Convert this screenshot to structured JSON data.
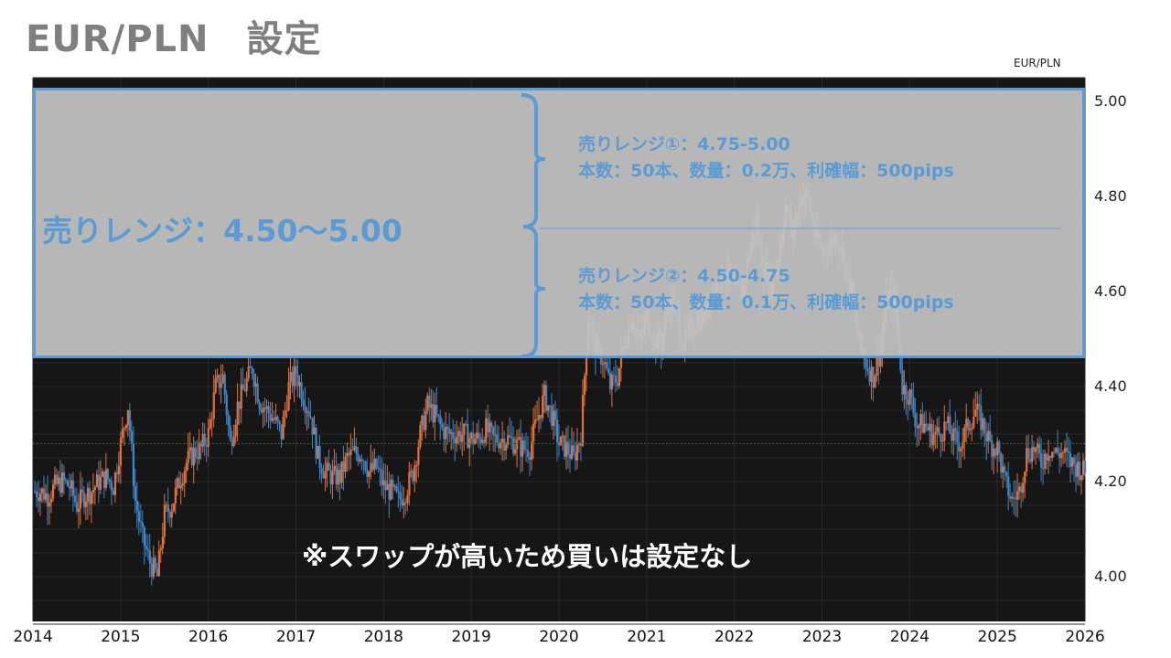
{
  "title": "EUR/PLN　設定",
  "pair_label": "EUR/PLN",
  "annotations": {
    "main_range": "売りレンジ：4.50～5.00",
    "range1_line1": "売りレンジ①：4.75-5.00",
    "range1_line2": "本数：50本、数量：0.2万、利確幅：500pips",
    "range2_line1": "売りレンジ②：4.50-4.75",
    "range2_line2": "本数：50本、数量：0.1万、利確幅：500pips",
    "note": "※スワップが高いため買いは設定なし"
  },
  "colors": {
    "up": "#e0703c",
    "down": "#3f86c8",
    "accent": "#5b9bd5",
    "background": "#161616"
  },
  "chart_data": {
    "type": "candlestick",
    "title": "EUR/PLN",
    "xlabel": "",
    "ylabel": "",
    "xlim": [
      2014,
      2026
    ],
    "ylim": [
      3.9,
      5.05
    ],
    "x_ticks": [
      "2014",
      "2015",
      "2016",
      "2017",
      "2018",
      "2019",
      "2020",
      "2021",
      "2022",
      "2023",
      "2024",
      "2025",
      "2026"
    ],
    "y_ticks": [
      "5.00",
      "4.80",
      "4.60",
      "4.40",
      "4.20",
      "4.00"
    ],
    "shaded_range": [
      4.5,
      5.0
    ],
    "range_split": 4.75,
    "reference_line": 4.28,
    "monthly_close_start": 2014,
    "monthly_close": [
      4.18,
      4.17,
      4.19,
      4.2,
      4.19,
      4.15,
      4.17,
      4.18,
      4.2,
      4.21,
      4.19,
      4.28,
      4.36,
      4.16,
      4.08,
      4.03,
      4.0,
      4.13,
      4.15,
      4.2,
      4.24,
      4.26,
      4.27,
      4.3,
      4.4,
      4.42,
      4.28,
      4.36,
      4.4,
      4.44,
      4.37,
      4.35,
      4.33,
      4.3,
      4.4,
      4.43,
      4.38,
      4.34,
      4.25,
      4.22,
      4.21,
      4.21,
      4.25,
      4.26,
      4.26,
      4.22,
      4.23,
      4.19,
      4.18,
      4.16,
      4.18,
      4.22,
      4.3,
      4.36,
      4.34,
      4.31,
      4.3,
      4.3,
      4.3,
      4.29,
      4.29,
      4.31,
      4.29,
      4.29,
      4.29,
      4.28,
      4.27,
      4.27,
      4.33,
      4.38,
      4.34,
      4.28,
      4.27,
      4.25,
      4.3,
      4.55,
      4.48,
      4.46,
      4.4,
      4.42,
      4.5,
      4.55,
      4.49,
      4.55,
      4.5,
      4.49,
      4.58,
      4.56,
      4.49,
      4.52,
      4.54,
      4.55,
      4.6,
      4.62,
      4.65,
      4.6,
      4.6,
      4.68,
      4.75,
      4.65,
      4.62,
      4.67,
      4.78,
      4.72,
      4.8,
      4.8,
      4.72,
      4.68,
      4.7,
      4.72,
      4.67,
      4.6,
      4.5,
      4.45,
      4.42,
      4.48,
      4.6,
      4.58,
      4.4,
      4.38,
      4.32,
      4.32,
      4.3,
      4.3,
      4.32,
      4.29,
      4.28,
      4.32,
      4.35,
      4.32,
      4.28,
      4.27,
      4.2,
      4.16,
      4.18,
      4.26,
      4.27,
      4.24,
      4.27,
      4.26,
      4.26,
      4.24,
      4.23,
      4.22
    ]
  }
}
